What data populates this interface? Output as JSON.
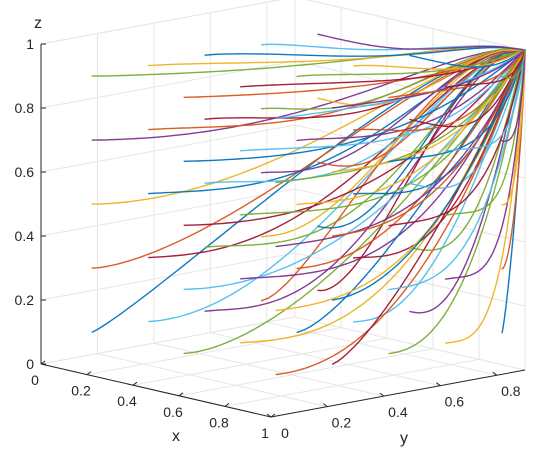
{
  "chart_data": {
    "type": "line",
    "title": "",
    "xlabel": "x",
    "ylabel": "y",
    "zlabel": "z",
    "xlim": [
      0,
      1
    ],
    "ylim": [
      0,
      0.9
    ],
    "zlim": [
      0,
      1
    ],
    "grid": true,
    "x_ticks": [
      {
        "value": 0,
        "label": "0"
      },
      {
        "value": 0.2,
        "label": "0.2"
      },
      {
        "value": 0.4,
        "label": "0.4"
      },
      {
        "value": 0.6,
        "label": "0.6"
      },
      {
        "value": 0.8,
        "label": "0.8"
      },
      {
        "value": 1,
        "label": "1"
      }
    ],
    "y_ticks": [
      {
        "value": 0,
        "label": "0"
      },
      {
        "value": 0.2,
        "label": "0.2"
      },
      {
        "value": 0.4,
        "label": "0.4"
      },
      {
        "value": 0.6,
        "label": "0.6"
      },
      {
        "value": 0.8,
        "label": "0.8"
      }
    ],
    "z_ticks": [
      {
        "value": 0,
        "label": "0"
      },
      {
        "value": 0.2,
        "label": "0.2"
      },
      {
        "value": 0.4,
        "label": "0.4"
      },
      {
        "value": 0.6,
        "label": "0.6"
      },
      {
        "value": 0.8,
        "label": "0.8"
      },
      {
        "value": 1,
        "label": "1"
      }
    ],
    "endpoint": [
      1,
      0.9,
      1
    ],
    "initial_x": [
      0.1,
      0.5,
      0.9
    ],
    "initial_y": [
      0.1,
      0.3,
      0.5,
      0.7,
      0.9
    ],
    "initial_z": [
      0.1,
      0.3,
      0.5,
      0.7,
      0.9
    ],
    "series_colors": [
      "#0072BD",
      "#D95319",
      "#EDB120",
      "#7E2F8E",
      "#77AC30",
      "#4DBEEE",
      "#A2142F"
    ]
  }
}
